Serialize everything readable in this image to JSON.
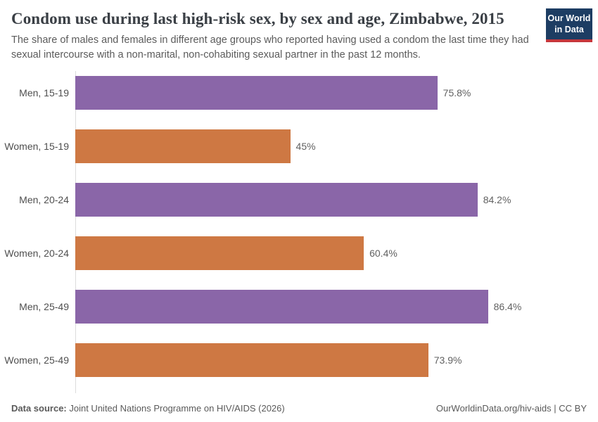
{
  "header": {
    "title": "Condom use during last high-risk sex, by sex and age, Zimbabwe, 2015",
    "subtitle": "The share of males and females in different age groups who reported having used a condom the last time they had sexual intercourse with a non-marital, non-cohabiting sexual partner in the past 12 months.",
    "logo": {
      "line1": "Our World",
      "line2": "in Data"
    }
  },
  "chart_data": {
    "type": "bar",
    "orientation": "horizontal",
    "title": "Condom use during last high-risk sex, by sex and age, Zimbabwe, 2015",
    "categories": [
      "Men, 15-19",
      "Women, 15-19",
      "Men, 20-24",
      "Women, 20-24",
      "Men, 25-49",
      "Women, 25-49"
    ],
    "values": [
      75.8,
      45,
      84.2,
      60.4,
      86.4,
      73.9
    ],
    "value_labels": [
      "75.8%",
      "45%",
      "84.2%",
      "60.4%",
      "86.4%",
      "73.9%"
    ],
    "bar_colors": [
      "#8a66a8",
      "#ce7843",
      "#8a66a8",
      "#ce7843",
      "#8a66a8",
      "#ce7843"
    ],
    "series_colors": {
      "men": "#8a66a8",
      "women": "#ce7843"
    },
    "xlim": [
      0,
      100
    ],
    "grid": false,
    "legend": "none",
    "axis_line_color": "#dcdcdc"
  },
  "footer": {
    "datasource_label": "Data source:",
    "datasource_value": " Joint United Nations Programme on HIV/AIDS (2026)",
    "attribution": "OurWorldinData.org/hiv-aids | CC BY"
  }
}
